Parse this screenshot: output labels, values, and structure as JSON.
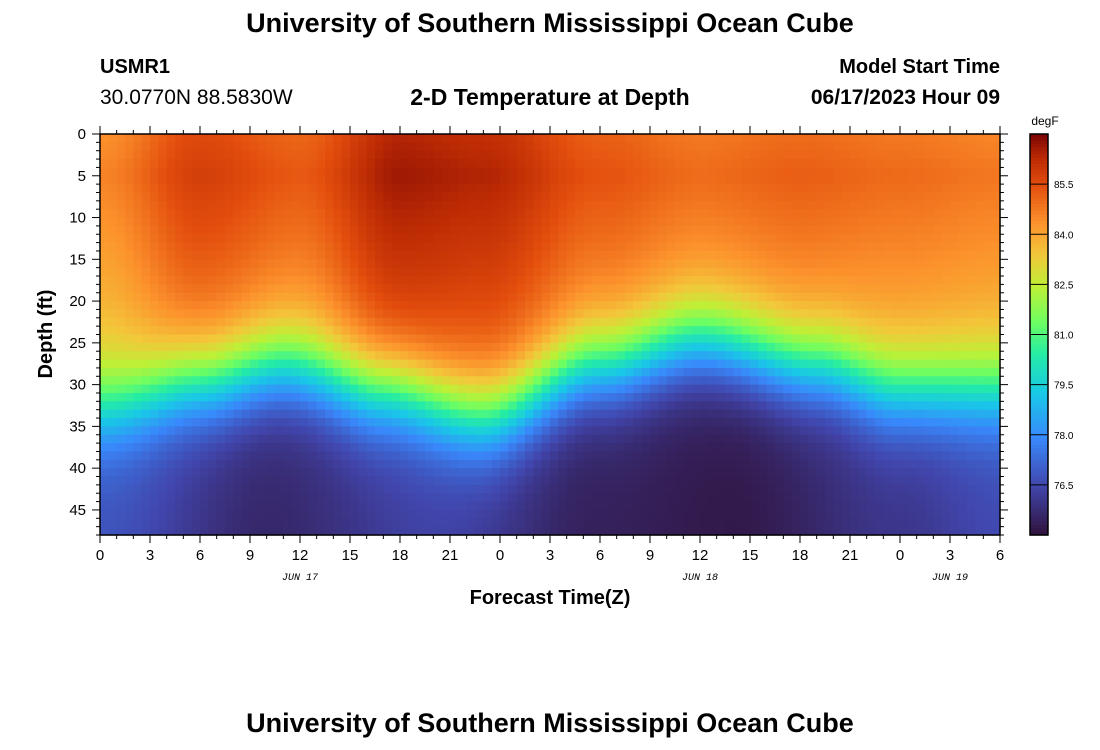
{
  "page": {
    "title_top": "University of Southern Mississippi Ocean Cube",
    "title_bottom": "University of Southern Mississippi Ocean Cube",
    "station_id": "USMR1",
    "coordinates": "30.0770N  88.5830W",
    "subtitle": "2-D Temperature at Depth",
    "model_start_label": "Model Start Time",
    "model_start_value": "06/17/2023 Hour 09"
  },
  "chart_data": {
    "type": "heatmap",
    "title": "2-D Temperature at Depth",
    "xlabel": "Forecast Time(Z)",
    "ylabel": "Depth (ft)",
    "x_tick_labels": [
      "0",
      "3",
      "6",
      "9",
      "12",
      "15",
      "18",
      "21",
      "0",
      "3",
      "6",
      "9",
      "12",
      "15",
      "18",
      "21",
      "0",
      "3",
      "6"
    ],
    "x_range_hours": [
      0,
      54
    ],
    "date_labels": [
      {
        "label": "JUN 17",
        "hour": 12
      },
      {
        "label": "JUN 18",
        "hour": 36
      },
      {
        "label": "JUN 19",
        "hour": 51
      }
    ],
    "y_tick_labels": [
      "0",
      "5",
      "10",
      "15",
      "20",
      "25",
      "30",
      "35",
      "40",
      "45"
    ],
    "y_ticks": [
      0,
      5,
      10,
      15,
      20,
      25,
      30,
      35,
      40,
      45
    ],
    "ylim": [
      0,
      48
    ],
    "colorbar": {
      "units": "degF",
      "range": [
        75.0,
        87.0
      ],
      "ticks": [
        76.5,
        78.0,
        79.5,
        81.0,
        82.5,
        84.0,
        85.5
      ],
      "tick_labels": [
        "76.5",
        "78.0",
        "79.5",
        "81.0",
        "82.5",
        "84.0",
        "85.5"
      ]
    },
    "thermocline_depth_ft": {
      "hours": [
        0,
        6,
        11,
        17,
        23,
        30,
        36,
        43,
        48,
        54
      ],
      "depth": [
        33,
        30,
        28,
        31,
        34,
        28,
        25,
        28,
        31,
        31
      ]
    },
    "surface_temperature_degF": {
      "hours": [
        0,
        6,
        12,
        18,
        23,
        30,
        36,
        42,
        48,
        54
      ],
      "value": [
        84.6,
        85.8,
        85.3,
        86.6,
        86.4,
        85.4,
        85.0,
        85.2,
        85.0,
        84.8
      ]
    },
    "bottom_temperature_degF": {
      "hours": [
        0,
        10,
        20,
        30,
        38,
        48,
        54
      ],
      "value": [
        76.7,
        75.6,
        76.3,
        75.4,
        75.2,
        76.0,
        76.5
      ]
    }
  }
}
